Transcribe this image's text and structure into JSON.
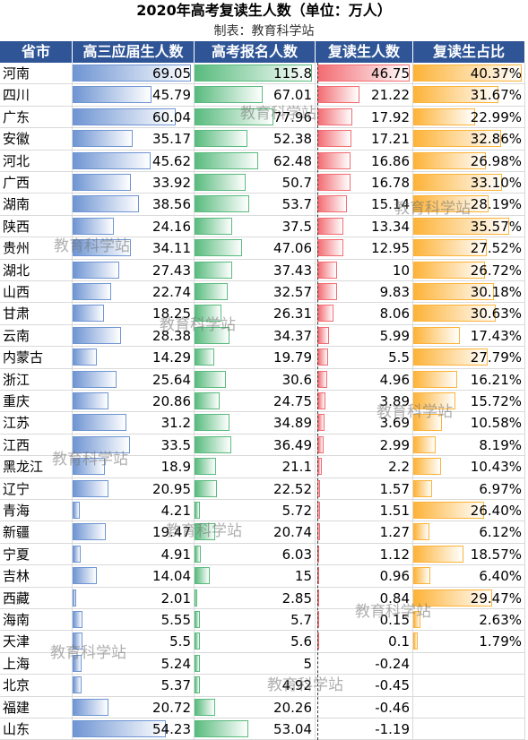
{
  "chart_data": {
    "type": "table",
    "title": "2020年高考复读生人数（单位：万人）",
    "subtitle": "制表：教育科学站",
    "columns": [
      "省市",
      "高三应届生人数",
      "高考报名人数",
      "复读生人数",
      "复读生占比"
    ],
    "rows": [
      {
        "province": "河南",
        "seniors": "69.05",
        "applicants": "115.8",
        "repeaters": "46.75",
        "share": "40.37%"
      },
      {
        "province": "四川",
        "seniors": "45.79",
        "applicants": "67.01",
        "repeaters": "21.22",
        "share": "31.67%"
      },
      {
        "province": "广东",
        "seniors": "60.04",
        "applicants": "77.96",
        "repeaters": "17.92",
        "share": "22.99%"
      },
      {
        "province": "安徽",
        "seniors": "35.17",
        "applicants": "52.38",
        "repeaters": "17.21",
        "share": "32.86%"
      },
      {
        "province": "河北",
        "seniors": "45.62",
        "applicants": "62.48",
        "repeaters": "16.86",
        "share": "26.98%"
      },
      {
        "province": "广西",
        "seniors": "33.92",
        "applicants": "50.7",
        "repeaters": "16.78",
        "share": "33.10%"
      },
      {
        "province": "湖南",
        "seniors": "38.56",
        "applicants": "53.7",
        "repeaters": "15.14",
        "share": "28.19%"
      },
      {
        "province": "陕西",
        "seniors": "24.16",
        "applicants": "37.5",
        "repeaters": "13.34",
        "share": "35.57%"
      },
      {
        "province": "贵州",
        "seniors": "34.11",
        "applicants": "47.06",
        "repeaters": "12.95",
        "share": "27.52%"
      },
      {
        "province": "湖北",
        "seniors": "27.43",
        "applicants": "37.43",
        "repeaters": "10",
        "share": "26.72%"
      },
      {
        "province": "山西",
        "seniors": "22.74",
        "applicants": "32.57",
        "repeaters": "9.83",
        "share": "30.18%"
      },
      {
        "province": "甘肃",
        "seniors": "18.25",
        "applicants": "26.31",
        "repeaters": "8.06",
        "share": "30.63%"
      },
      {
        "province": "云南",
        "seniors": "28.38",
        "applicants": "34.37",
        "repeaters": "5.99",
        "share": "17.43%"
      },
      {
        "province": "内蒙古",
        "seniors": "14.29",
        "applicants": "19.79",
        "repeaters": "5.5",
        "share": "27.79%"
      },
      {
        "province": "浙江",
        "seniors": "25.64",
        "applicants": "30.6",
        "repeaters": "4.96",
        "share": "16.21%"
      },
      {
        "province": "重庆",
        "seniors": "20.86",
        "applicants": "24.75",
        "repeaters": "3.89",
        "share": "15.72%"
      },
      {
        "province": "江苏",
        "seniors": "31.2",
        "applicants": "34.89",
        "repeaters": "3.69",
        "share": "10.58%"
      },
      {
        "province": "江西",
        "seniors": "33.5",
        "applicants": "36.49",
        "repeaters": "2.99",
        "share": "8.19%"
      },
      {
        "province": "黑龙江",
        "seniors": "18.9",
        "applicants": "21.1",
        "repeaters": "2.2",
        "share": "10.43%"
      },
      {
        "province": "辽宁",
        "seniors": "20.95",
        "applicants": "22.52",
        "repeaters": "1.57",
        "share": "6.97%"
      },
      {
        "province": "青海",
        "seniors": "4.21",
        "applicants": "5.72",
        "repeaters": "1.51",
        "share": "26.40%"
      },
      {
        "province": "新疆",
        "seniors": "19.47",
        "applicants": "20.74",
        "repeaters": "1.27",
        "share": "6.12%"
      },
      {
        "province": "宁夏",
        "seniors": "4.91",
        "applicants": "6.03",
        "repeaters": "1.12",
        "share": "18.57%"
      },
      {
        "province": "吉林",
        "seniors": "14.04",
        "applicants": "15",
        "repeaters": "0.96",
        "share": "6.40%"
      },
      {
        "province": "西藏",
        "seniors": "2.01",
        "applicants": "2.85",
        "repeaters": "0.84",
        "share": "29.47%"
      },
      {
        "province": "海南",
        "seniors": "5.55",
        "applicants": "5.7",
        "repeaters": "0.15",
        "share": "2.63%"
      },
      {
        "province": "天津",
        "seniors": "5.5",
        "applicants": "5.6",
        "repeaters": "0.1",
        "share": "1.79%"
      },
      {
        "province": "上海",
        "seniors": "5.24",
        "applicants": "5",
        "repeaters": "-0.24",
        "share": ""
      },
      {
        "province": "北京",
        "seniors": "5.37",
        "applicants": "4.92",
        "repeaters": "-0.45",
        "share": ""
      },
      {
        "province": "福建",
        "seniors": "20.72",
        "applicants": "20.26",
        "repeaters": "-0.46",
        "share": ""
      },
      {
        "province": "山东",
        "seniors": "54.23",
        "applicants": "53.04",
        "repeaters": "-1.19",
        "share": ""
      }
    ]
  },
  "watermark": "教育科学站",
  "colors": {
    "header_bg": "#2f5597",
    "seniors_bar": "#6f95d3",
    "applicants_bar": "#59bb7e",
    "repeaters_bar": "#f26c72",
    "share_bar": "#fdb338"
  }
}
